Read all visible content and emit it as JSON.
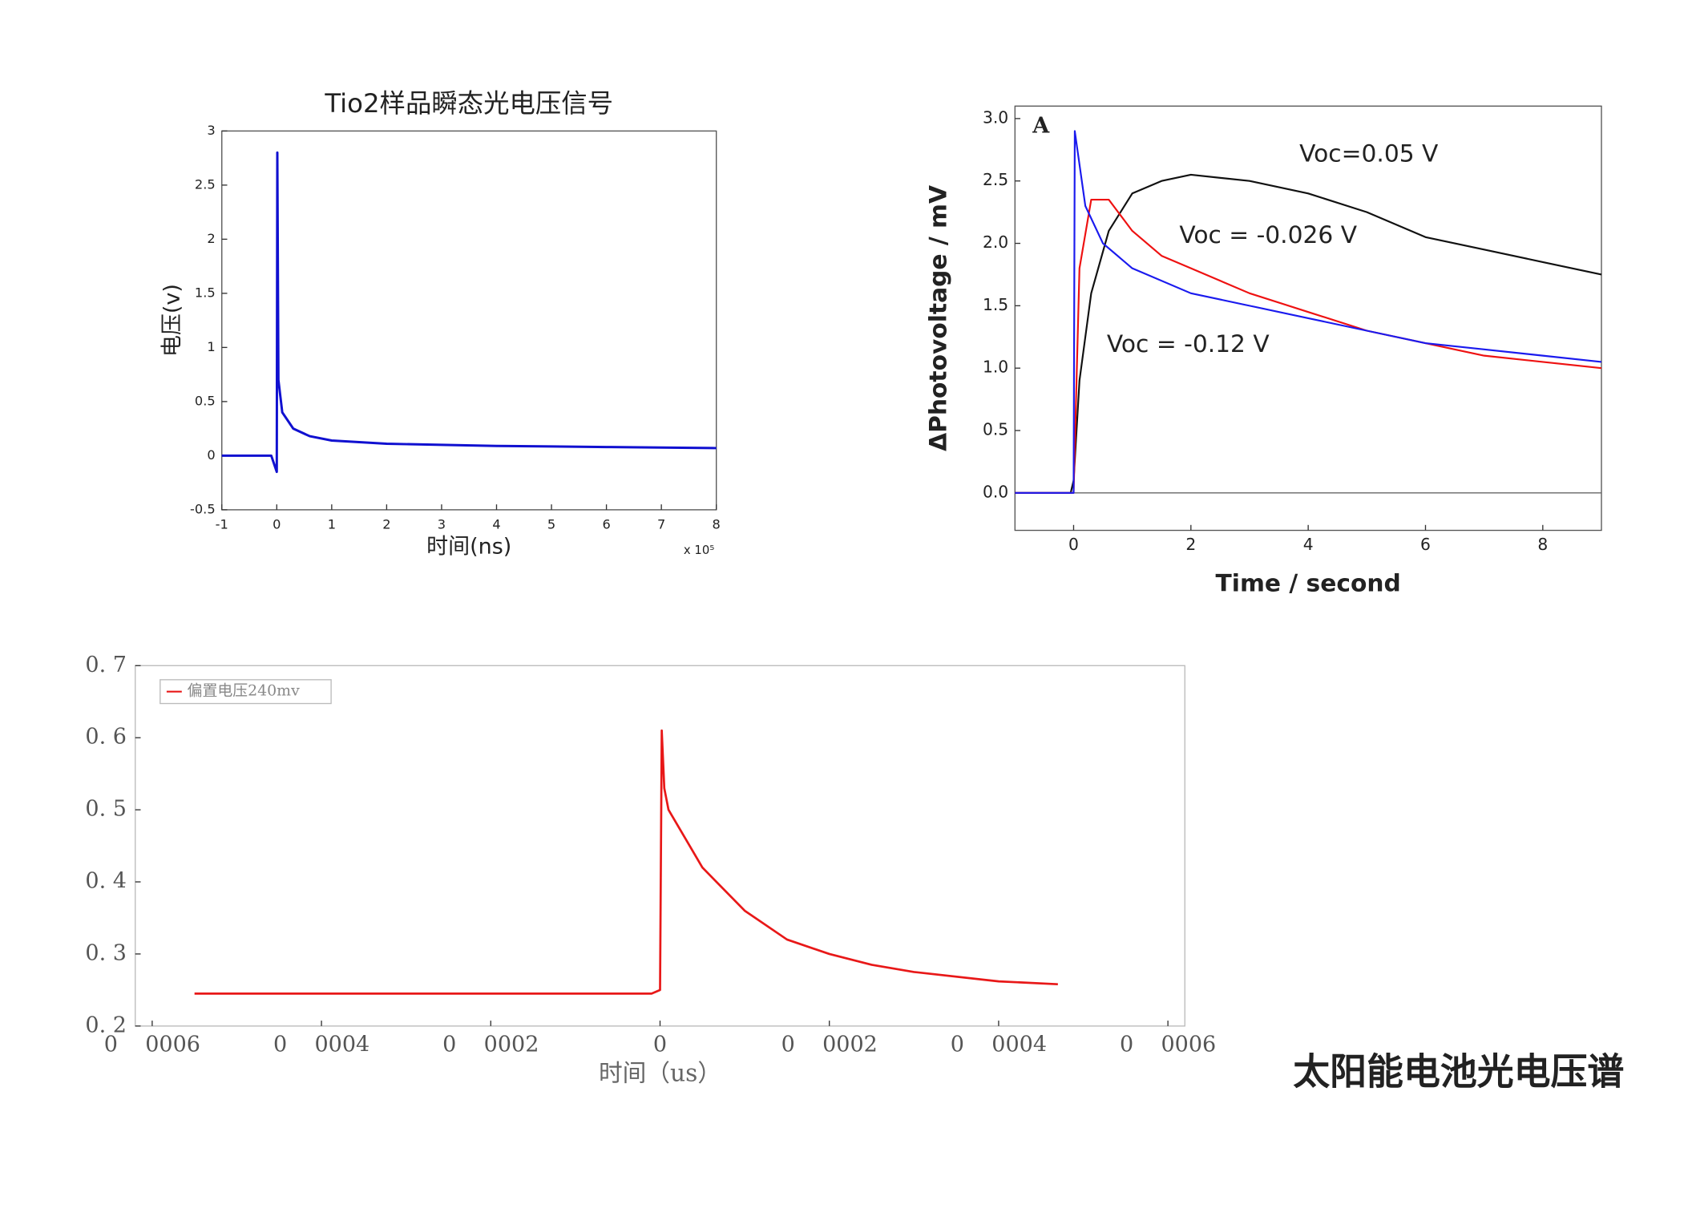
{
  "chart_data": [
    {
      "type": "line",
      "title": "Tio2样品瞬态光电压信号",
      "y_label": "电压(v)",
      "x_label": "时间(ns)",
      "x_multiplier": "x 10⁵",
      "x": [
        -1,
        -0.5,
        -0.1,
        0,
        0.01,
        0.03,
        0.1,
        0.3,
        0.6,
        1,
        2,
        3,
        4,
        5,
        6,
        7,
        8
      ],
      "values": [
        0,
        0,
        0,
        -0.15,
        2.8,
        0.7,
        0.4,
        0.25,
        0.18,
        0.14,
        0.11,
        0.1,
        0.09,
        0.085,
        0.08,
        0.075,
        0.07
      ],
      "color": "#1010d0",
      "xlim": [
        -1,
        8
      ],
      "xticks": [
        -1,
        0,
        1,
        2,
        3,
        4,
        5,
        6,
        7,
        8
      ],
      "ylim": [
        -0.5,
        3
      ],
      "yticks": [
        -0.5,
        0,
        0.5,
        1,
        1.5,
        2,
        2.5,
        3
      ]
    },
    {
      "type": "line",
      "panel_label": "A",
      "y_label": "ΔPhotovoltage / mV",
      "x_label": "Time / second",
      "zero_line": true,
      "xlim": [
        -1,
        9
      ],
      "xticks": [
        0,
        2,
        4,
        6,
        8
      ],
      "ylim": [
        -0.3,
        3.1
      ],
      "yticks": [
        {
          "value": 0,
          "label": "0.0"
        },
        {
          "value": 0.5,
          "label": "0.5"
        },
        {
          "value": 1,
          "label": "1.0"
        },
        {
          "value": 1.5,
          "label": "1.5"
        },
        {
          "value": 2,
          "label": "2.0"
        },
        {
          "value": 2.5,
          "label": "2.5"
        },
        {
          "value": 3,
          "label": "3.0"
        }
      ],
      "series": [
        {
          "name": "Voc=0.05 V",
          "color": "#111111",
          "x": [
            -1,
            -0.5,
            -0.05,
            0,
            0.1,
            0.3,
            0.6,
            1,
            1.5,
            2,
            3,
            4,
            5,
            6,
            7,
            8,
            9
          ],
          "values": [
            0,
            0,
            0,
            0.1,
            0.9,
            1.6,
            2.1,
            2.4,
            2.5,
            2.55,
            2.5,
            2.4,
            2.25,
            2.05,
            1.95,
            1.85,
            1.75
          ]
        },
        {
          "name": "Voc = -0.026 V",
          "color": "#ee1111",
          "x": [
            -1,
            0,
            0.1,
            0.3,
            0.6,
            1,
            1.5,
            2,
            3,
            4,
            5,
            6,
            7,
            8,
            9
          ],
          "values": [
            0,
            0,
            1.8,
            2.35,
            2.35,
            2.1,
            1.9,
            1.8,
            1.6,
            1.45,
            1.3,
            1.2,
            1.1,
            1.05,
            1
          ]
        },
        {
          "name": "Voc = -0.12 V",
          "color": "#1a1aee",
          "x": [
            -1,
            0,
            0.02,
            0.2,
            0.5,
            1,
            2,
            3,
            4,
            5,
            6,
            7,
            8,
            9
          ],
          "values": [
            0,
            0,
            2.9,
            2.3,
            2,
            1.8,
            1.6,
            1.5,
            1.4,
            1.3,
            1.2,
            1.15,
            1.1,
            1.05
          ]
        }
      ]
    },
    {
      "type": "line",
      "x_label": "时间（us）",
      "legend": "top-left",
      "xlim": [
        -0.00062,
        0.00062
      ],
      "xticks": [
        {
          "value": -0.0006,
          "label": "0    0006"
        },
        {
          "value": -0.0004,
          "label": "0    0004"
        },
        {
          "value": -0.0002,
          "label": "0    0002"
        },
        0,
        {
          "value": 0.0002,
          "label": "0    0002"
        },
        {
          "value": 0.0004,
          "label": "0    0004"
        },
        {
          "value": 0.0006,
          "label": "0    0006"
        }
      ],
      "ylim": [
        0.2,
        0.7
      ],
      "yticks": [
        {
          "value": 0.2,
          "label": "0. 2"
        },
        {
          "value": 0.3,
          "label": "0. 3"
        },
        {
          "value": 0.4,
          "label": "0. 4"
        },
        {
          "value": 0.5,
          "label": "0. 5"
        },
        {
          "value": 0.6,
          "label": "0. 6"
        },
        {
          "value": 0.7,
          "label": "0. 7"
        }
      ],
      "x": [
        -0.00055,
        -0.0004,
        -0.0002,
        -1e-05,
        0,
        2e-06,
        5e-06,
        1e-05,
        3e-05,
        5e-05,
        0.0001,
        0.00015,
        0.0002,
        0.00025,
        0.0003,
        0.0004,
        0.00047
      ],
      "series": [
        {
          "name": "偏置电压240mv",
          "color": "#e81818",
          "values": [
            0.245,
            0.245,
            0.245,
            0.245,
            0.25,
            0.61,
            0.53,
            0.5,
            0.46,
            0.42,
            0.36,
            0.32,
            0.3,
            0.285,
            0.275,
            0.262,
            0.258
          ]
        }
      ]
    }
  ],
  "caption": "太阳能电池光电压谱"
}
